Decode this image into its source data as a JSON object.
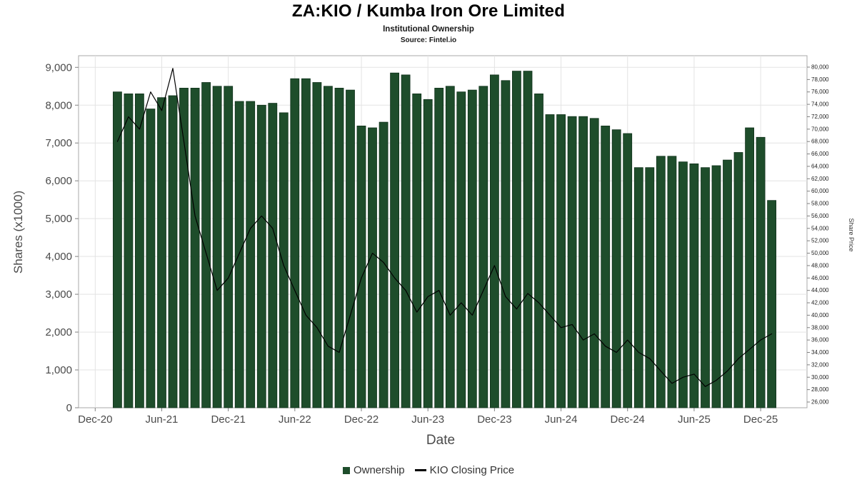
{
  "header": {
    "title": "ZA:KIO / Kumba Iron Ore Limited",
    "subtitle": "Institutional Ownership",
    "source": "Source: Fintel.io"
  },
  "axes": {
    "left_title": "Shares (x1000)",
    "right_title": "Share Price",
    "x_title": "Date"
  },
  "legend": {
    "items": [
      {
        "label": "Ownership",
        "swatch": "square",
        "color": "#1e4d2b"
      },
      {
        "label": "KIO Closing Price",
        "swatch": "line",
        "color": "#000000"
      }
    ]
  },
  "colors": {
    "bar_fill": "#1e4d2b",
    "bar_stroke": "#11321c",
    "price_line": "#000000",
    "grid": "#e3e3e3",
    "plot_border": "#a8a8a8",
    "tick": "#808080",
    "axis_text": "#4a4a4a",
    "right_axis_text": "#222222"
  },
  "chart_data": {
    "type": "bar",
    "title": "ZA:KIO / Kumba Iron Ore Limited",
    "subtitle": "Institutional Ownership",
    "source": "Source: Fintel.io",
    "xlabel": "Date",
    "ylabel": "Shares (x1000)",
    "ylabel_right": "Share Price",
    "x_axis": {
      "tick_labels": [
        "Dec-20",
        "Jun-21",
        "Dec-21",
        "Jun-22",
        "Dec-22",
        "Jun-23",
        "Dec-23",
        "Jun-24",
        "Dec-24",
        "Jun-25",
        "Dec-25"
      ],
      "tick_interval_months": 6,
      "first_bar_month_index": 2
    },
    "y_left": {
      "min": 0,
      "max": 9000,
      "tick_step": 1000
    },
    "y_right": {
      "min": 26000,
      "max": 80000,
      "tick_step": 2000
    },
    "categories": [
      "Feb-21",
      "Mar-21",
      "Apr-21",
      "May-21",
      "Jun-21",
      "Jul-21",
      "Aug-21",
      "Sep-21",
      "Oct-21",
      "Nov-21",
      "Dec-21",
      "Jan-22",
      "Feb-22",
      "Mar-22",
      "Apr-22",
      "May-22",
      "Jun-22",
      "Jul-22",
      "Aug-22",
      "Sep-22",
      "Oct-22",
      "Nov-22",
      "Dec-22",
      "Jan-23",
      "Feb-23",
      "Mar-23",
      "Apr-23",
      "May-23",
      "Jun-23",
      "Jul-23",
      "Aug-23",
      "Sep-23",
      "Oct-23",
      "Nov-23",
      "Dec-23",
      "Jan-24",
      "Feb-24",
      "Mar-24",
      "Apr-24",
      "May-24",
      "Jun-24",
      "Jul-24",
      "Aug-24",
      "Sep-24",
      "Oct-24",
      "Nov-24",
      "Dec-24",
      "Jan-25",
      "Feb-25",
      "Mar-25",
      "Apr-25",
      "May-25",
      "Jun-25",
      "Jul-25",
      "Aug-25",
      "Sep-25",
      "Oct-25",
      "Nov-25",
      "Dec-25",
      "Jan-26"
    ],
    "series": [
      {
        "name": "Ownership",
        "type": "bar",
        "axis": "left",
        "color": "#1e4d2b",
        "values": [
          8350,
          8300,
          8300,
          7900,
          8200,
          8250,
          8450,
          8450,
          8600,
          8500,
          8500,
          8100,
          8100,
          8000,
          8050,
          7800,
          8700,
          8700,
          8600,
          8500,
          8450,
          8400,
          7450,
          7400,
          7550,
          8850,
          8800,
          8300,
          8150,
          8450,
          8500,
          8350,
          8400,
          8500,
          8800,
          8650,
          8900,
          8900,
          8300,
          7750,
          7750,
          7700,
          7700,
          7650,
          7450,
          7350,
          7250,
          6350,
          6350,
          6650,
          6650,
          6500,
          6450,
          6350,
          6400,
          6550,
          6750,
          7400,
          7150,
          5480
        ]
      },
      {
        "name": "KIO Closing Price",
        "type": "line",
        "axis": "right",
        "color": "#000000",
        "values": [
          68000,
          72000,
          70000,
          76000,
          73000,
          79800,
          68000,
          56000,
          50000,
          44000,
          46000,
          50000,
          54000,
          56000,
          54000,
          48000,
          44000,
          40000,
          38000,
          35000,
          34000,
          40000,
          46000,
          50000,
          48500,
          46000,
          44000,
          40500,
          43000,
          44000,
          40000,
          42000,
          40000,
          44000,
          48000,
          43000,
          41000,
          43500,
          42000,
          40000,
          38000,
          38500,
          36000,
          37000,
          35000,
          34000,
          36000,
          34000,
          33000,
          31000,
          29000,
          30000,
          30500,
          28500,
          29500,
          31000,
          33000,
          34500,
          36000,
          37000
        ]
      }
    ],
    "legend_position": "bottom",
    "grid": true
  }
}
